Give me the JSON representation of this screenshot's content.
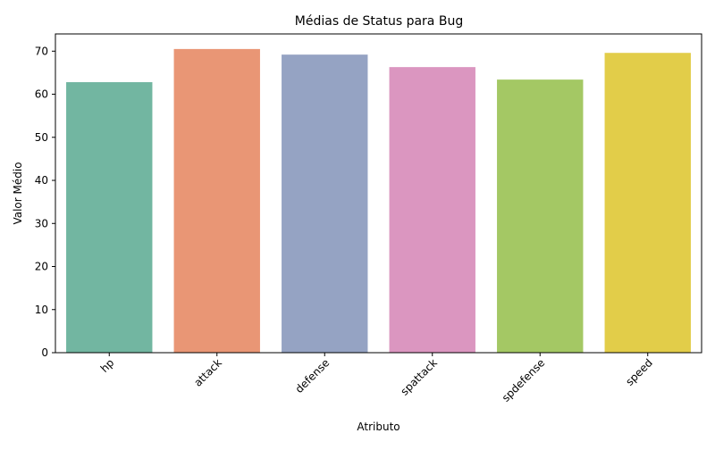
{
  "chart_data": {
    "type": "bar",
    "title": "Médias de Status para Bug",
    "xlabel": "Atributo",
    "ylabel": "Valor Médio",
    "categories": [
      "hp",
      "attack",
      "defense",
      "spattack",
      "spdefense",
      "speed"
    ],
    "values": [
      62.8,
      70.5,
      69.2,
      66.3,
      63.4,
      69.6
    ],
    "colors": [
      "#72b6a1",
      "#e99675",
      "#95a3c3",
      "#db96c0",
      "#a4c864",
      "#e2cd49"
    ],
    "ylim": [
      0,
      74
    ],
    "yticks": [
      0,
      10,
      20,
      30,
      40,
      50,
      60,
      70
    ],
    "xtick_rotation": 45,
    "grid": false,
    "legend": "none"
  }
}
